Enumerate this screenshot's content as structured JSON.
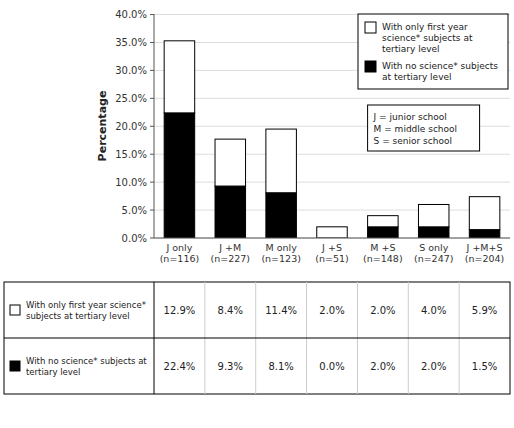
{
  "chart_data": {
    "type": "bar",
    "stacked": true,
    "ylabel": "Percentage",
    "categories": [
      "J only\n(n=116)",
      "J +M\n(n=227)",
      "M only\n(n=123)",
      "J +S\n(n=51)",
      "M +S\n(n=148)",
      "S only\n(n=247)",
      "J +M+S\n(n=204)"
    ],
    "series": [
      {
        "name": "With no science* subjects\nat tertiary level",
        "color": "#000000",
        "values": [
          0.224,
          0.093,
          0.081,
          0.0,
          0.02,
          0.02,
          0.015
        ]
      },
      {
        "name": "With only first year\nscience* subjects at\ntertiary level",
        "color": "#ffffff",
        "values": [
          0.129,
          0.084,
          0.114,
          0.02,
          0.02,
          0.04,
          0.059
        ]
      }
    ],
    "ylim": [
      0,
      0.401
    ],
    "yticks": [
      {
        "value": 0.0,
        "label": "0.0%"
      },
      {
        "value": 0.05,
        "label": "5.0%"
      },
      {
        "value": 0.1,
        "label": "10.0%"
      },
      {
        "value": 0.15,
        "label": "15.0%"
      },
      {
        "value": 0.2,
        "label": "20.0%"
      },
      {
        "value": 0.25,
        "label": "25.0%"
      },
      {
        "value": 0.3,
        "label": "30.0%"
      },
      {
        "value": 0.35,
        "label": "35.0%"
      },
      {
        "value": 0.4,
        "label": "40.0%"
      }
    ],
    "grid": true,
    "legend": "upper right",
    "annotations": [
      "J  = junior school\nM = middle school\nS  = senior school"
    ],
    "table": {
      "rows": [
        {
          "label": "With only first year science*\nsubjects at tertiary level",
          "color": "#ffffff",
          "cells": [
            "12.9%",
            "8.4%",
            "11.4%",
            "2.0%",
            "2.0%",
            "4.0%",
            "5.9%"
          ]
        },
        {
          "label": "With no science* subjects at\ntertiary level",
          "color": "#000000",
          "cells": [
            "22.4%",
            "9.3%",
            "8.1%",
            "0.0%",
            "2.0%",
            "2.0%",
            "1.5%"
          ]
        }
      ]
    }
  }
}
